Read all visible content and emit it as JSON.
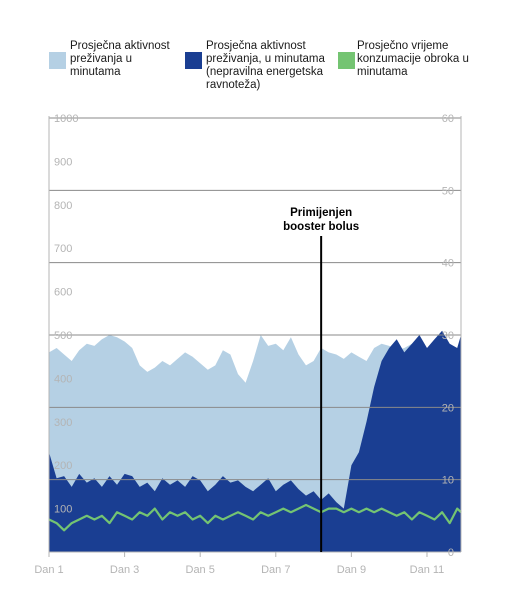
{
  "colors": {
    "light_area": "#b5d0e4",
    "dark_area": "#1a3e92",
    "green_line": "#74c472",
    "grid": "#8a8a8a",
    "tick": "#b4b4b4",
    "marker": "#000000"
  },
  "legend": [
    {
      "label": "Prosječna aktivnost preživanja u minutama",
      "color": "#b5d0e4"
    },
    {
      "label": "Prosječna aktivnost preživanja, u minutama (nepravilna energetska ravnoteža)",
      "color": "#1a3e92"
    },
    {
      "label": "Prosječno vrijeme konzumacije obroka u minutama",
      "color": "#74c472"
    }
  ],
  "chart_data": {
    "type": "area",
    "xlabel": "",
    "ylabel": "",
    "x_ticks": [
      "Dan 1",
      "Dan 3",
      "Dan 5",
      "Dan 7",
      "Dan 9",
      "Dan 11"
    ],
    "x_tick_days": [
      1,
      3,
      5,
      7,
      9,
      11
    ],
    "x_range": [
      1,
      11.9
    ],
    "y_left": {
      "range": [
        0,
        1000
      ],
      "ticks": [
        100,
        200,
        300,
        400,
        500,
        600,
        700,
        800,
        900,
        1000
      ]
    },
    "y_right": {
      "range": [
        0,
        60
      ],
      "ticks": [
        0,
        10,
        20,
        30,
        40,
        50,
        60
      ]
    },
    "grid": true,
    "legend_position": "top",
    "annotation": {
      "lines": [
        "Primijenjen",
        "booster bolus"
      ],
      "day": 8.2
    },
    "series": [
      {
        "name": "Prosječna aktivnost preživanja u minutama",
        "axis": "left",
        "x": [
          1,
          1.2,
          1.4,
          1.6,
          1.8,
          2,
          2.2,
          2.4,
          2.6,
          2.8,
          3,
          3.2,
          3.4,
          3.6,
          3.8,
          4,
          4.2,
          4.4,
          4.6,
          4.8,
          5,
          5.2,
          5.4,
          5.6,
          5.8,
          6,
          6.2,
          6.4,
          6.6,
          6.8,
          7,
          7.2,
          7.4,
          7.6,
          7.8,
          8,
          8.2,
          8.4,
          8.6,
          8.8,
          9,
          9.2,
          9.4,
          9.6,
          9.8,
          10,
          10.2,
          10.4,
          10.6,
          10.8,
          11,
          11.2,
          11.4,
          11.6,
          11.8,
          11.9
        ],
        "y": [
          460,
          470,
          455,
          440,
          465,
          480,
          475,
          490,
          500,
          495,
          485,
          470,
          430,
          415,
          425,
          440,
          430,
          445,
          460,
          450,
          435,
          420,
          430,
          465,
          455,
          410,
          390,
          440,
          500,
          475,
          480,
          465,
          495,
          455,
          430,
          440,
          470,
          460,
          455,
          445,
          460,
          450,
          440,
          470,
          480,
          475,
          465,
          470,
          480,
          460,
          465,
          470,
          480,
          470,
          460,
          465
        ]
      },
      {
        "name": "Prosječna aktivnost preživanja, u minutama (nepravilna energetska ravnoteža)",
        "axis": "left",
        "x": [
          1,
          1.2,
          1.4,
          1.6,
          1.8,
          2,
          2.2,
          2.4,
          2.6,
          2.8,
          3,
          3.2,
          3.4,
          3.6,
          3.8,
          4,
          4.2,
          4.4,
          4.6,
          4.8,
          5,
          5.2,
          5.4,
          5.6,
          5.8,
          6,
          6.2,
          6.4,
          6.6,
          6.8,
          7,
          7.2,
          7.4,
          7.6,
          7.8,
          8,
          8.2,
          8.4,
          8.6,
          8.8,
          9,
          9.2,
          9.4,
          9.6,
          9.8,
          10,
          10.2,
          10.4,
          10.6,
          10.8,
          11,
          11.2,
          11.4,
          11.6,
          11.8,
          11.9
        ],
        "y": [
          230,
          170,
          175,
          150,
          180,
          160,
          170,
          150,
          175,
          155,
          180,
          175,
          150,
          160,
          140,
          170,
          155,
          165,
          150,
          175,
          165,
          140,
          155,
          175,
          160,
          165,
          150,
          140,
          155,
          170,
          140,
          155,
          165,
          145,
          130,
          140,
          120,
          135,
          115,
          100,
          200,
          230,
          300,
          380,
          440,
          470,
          490,
          460,
          480,
          500,
          470,
          490,
          510,
          480,
          470,
          500
        ]
      },
      {
        "name": "Prosječno vrijeme konzumacije obroka u minutama",
        "axis": "right",
        "x": [
          1,
          1.2,
          1.4,
          1.6,
          1.8,
          2,
          2.2,
          2.4,
          2.6,
          2.8,
          3,
          3.2,
          3.4,
          3.6,
          3.8,
          4,
          4.2,
          4.4,
          4.6,
          4.8,
          5,
          5.2,
          5.4,
          5.6,
          5.8,
          6,
          6.2,
          6.4,
          6.6,
          6.8,
          7,
          7.2,
          7.4,
          7.6,
          7.8,
          8,
          8.2,
          8.4,
          8.6,
          8.8,
          9,
          9.2,
          9.4,
          9.6,
          9.8,
          10,
          10.2,
          10.4,
          10.6,
          10.8,
          11,
          11.2,
          11.4,
          11.6,
          11.8,
          11.9
        ],
        "y": [
          4.5,
          4,
          3,
          4,
          4.5,
          5,
          4.5,
          5,
          4,
          5.5,
          5,
          4.5,
          5.5,
          5,
          6,
          4.5,
          5.5,
          5,
          5.5,
          4.5,
          5,
          4,
          5,
          4.5,
          5,
          5.5,
          5,
          4.5,
          5.5,
          5,
          5.5,
          6,
          5.5,
          6,
          6.5,
          6,
          5.5,
          6,
          6,
          5.5,
          6,
          5.5,
          6,
          5.5,
          6,
          5.5,
          5,
          5.5,
          4.5,
          5.5,
          5,
          4.5,
          5.5,
          4,
          6,
          5.5
        ]
      }
    ]
  }
}
